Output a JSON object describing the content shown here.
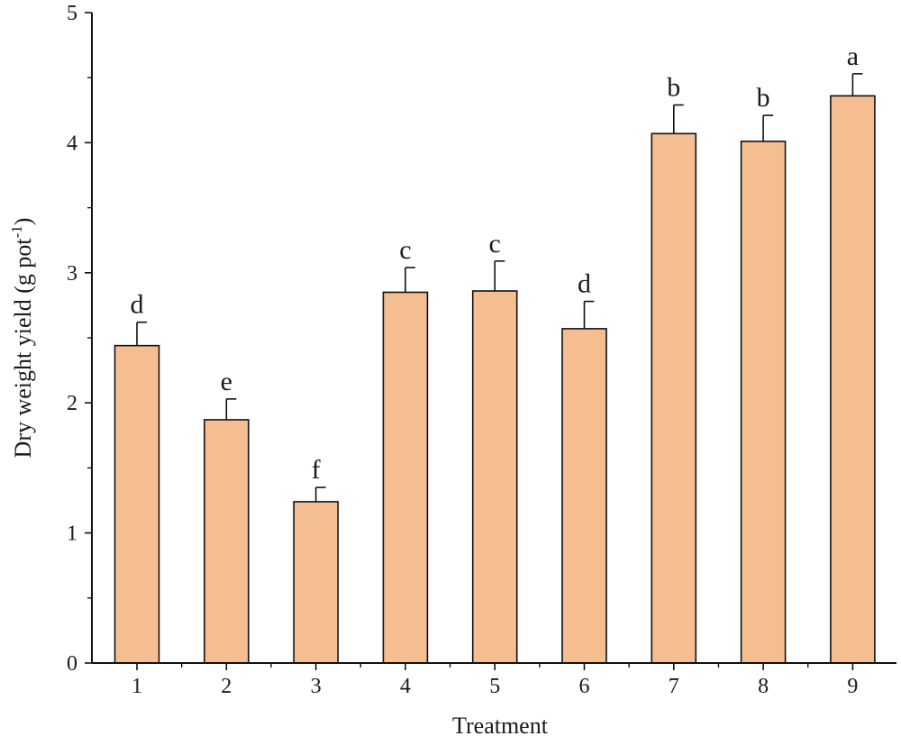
{
  "chart_data": {
    "type": "bar",
    "title": "",
    "xlabel": "Treatment",
    "ylabel": {
      "main": "Dry weight yield (g pot",
      "superscript": "-1",
      "suffix": ")"
    },
    "categories": [
      "1",
      "2",
      "3",
      "4",
      "5",
      "6",
      "7",
      "8",
      "9"
    ],
    "values": [
      2.44,
      1.87,
      1.24,
      2.85,
      2.86,
      2.57,
      4.07,
      4.01,
      4.36
    ],
    "errors": [
      0.18,
      0.16,
      0.11,
      0.19,
      0.23,
      0.21,
      0.22,
      0.2,
      0.17
    ],
    "significance": [
      "d",
      "e",
      "f",
      "c",
      "c",
      "d",
      "b",
      "b",
      "a"
    ],
    "ylim": [
      0,
      5
    ],
    "yticks": [
      0,
      1,
      2,
      3,
      4,
      5
    ],
    "grid": false,
    "legend": "none",
    "colors": {
      "bar_fill": "#F5BE91",
      "bar_stroke": "#111111",
      "axis": "#111111"
    }
  }
}
